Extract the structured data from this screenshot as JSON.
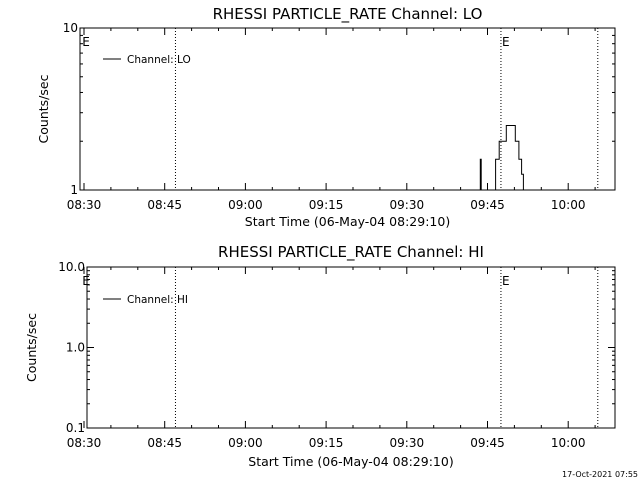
{
  "timestamp": "17-Oct-2021 07:55",
  "chart_data": [
    {
      "type": "line",
      "title": "RHESSI PARTICLE_RATE Channel: LO",
      "xlabel": "Start Time (06-May-04 08:29:10)",
      "ylabel": "Counts/sec",
      "x_ticks": [
        "08:30",
        "08:45",
        "09:00",
        "09:15",
        "09:30",
        "09:45",
        "10:00"
      ],
      "y_scale": "log",
      "ylim": [
        1,
        10
      ],
      "y_ticks": [
        {
          "value": 1,
          "label": "1"
        },
        {
          "value": 10,
          "label": "10"
        }
      ],
      "legend": "top-left",
      "series": [
        {
          "name": "Channel: LO",
          "color": "#000000",
          "points": [
            [
              "09:43:40",
              1
            ],
            [
              "09:43:40",
              1.55
            ],
            [
              "09:43:50",
              1.55
            ],
            [
              "09:43:50",
              1
            ],
            [
              "09:46:30",
              1
            ],
            [
              "09:46:30",
              1.55
            ],
            [
              "09:47:10",
              1.55
            ],
            [
              "09:47:10",
              2.0
            ],
            [
              "09:48:30",
              2.0
            ],
            [
              "09:48:30",
              2.5
            ],
            [
              "09:50:10",
              2.5
            ],
            [
              "09:50:10",
              2.0
            ],
            [
              "09:50:50",
              2.0
            ],
            [
              "09:50:50",
              1.55
            ],
            [
              "09:51:20",
              1.55
            ],
            [
              "09:51:20",
              1.25
            ],
            [
              "09:51:40",
              1.25
            ],
            [
              "09:51:40",
              1
            ]
          ]
        }
      ],
      "markers": [
        {
          "time": "08:29:30",
          "label": "E",
          "line": false
        },
        {
          "time": "08:47:00",
          "label": "",
          "line": true
        },
        {
          "time": "09:47:30",
          "label": "E",
          "line": true
        },
        {
          "time": "10:05:30",
          "label": "",
          "line": true
        }
      ]
    },
    {
      "type": "line",
      "title": "RHESSI PARTICLE_RATE Channel: HI",
      "xlabel": "Start Time (06-May-04 08:29:10)",
      "ylabel": "Counts/sec",
      "x_ticks": [
        "08:30",
        "08:45",
        "09:00",
        "09:15",
        "09:30",
        "09:45",
        "10:00"
      ],
      "y_scale": "log",
      "ylim": [
        0.1,
        10
      ],
      "y_ticks": [
        {
          "value": 0.1,
          "label": "0.1"
        },
        {
          "value": 1,
          "label": "1.0"
        },
        {
          "value": 10,
          "label": "10.0"
        }
      ],
      "legend": "top-left",
      "series": [
        {
          "name": "Channel: HI",
          "color": "#000000",
          "points": []
        }
      ],
      "markers": [
        {
          "time": "08:29:30",
          "label": "E",
          "line": false
        },
        {
          "time": "08:47:00",
          "label": "",
          "line": true
        },
        {
          "time": "09:47:30",
          "label": "E",
          "line": true
        },
        {
          "time": "10:05:30",
          "label": "",
          "line": true
        }
      ]
    }
  ]
}
